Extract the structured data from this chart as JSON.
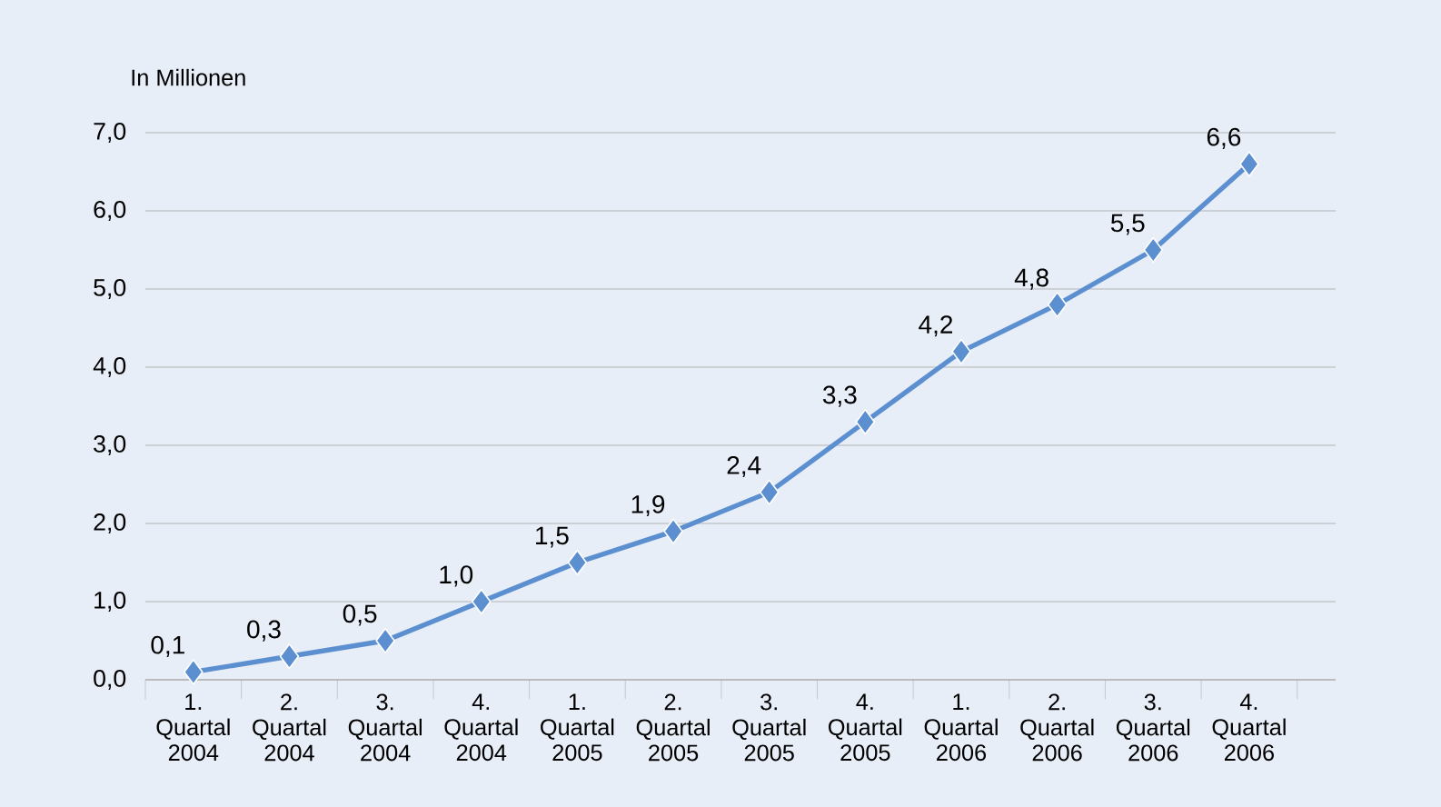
{
  "chart_data": {
    "type": "line",
    "ylabel": "In Millionen",
    "categories": [
      "1. Quartal 2004",
      "2. Quartal 2004",
      "3. Quartal 2004",
      "4. Quartal 2004",
      "1. Quartal 2005",
      "2. Quartal 2005",
      "3. Quartal 2005",
      "4. Quartal 2005",
      "1. Quartal 2006",
      "2. Quartal 2006",
      "3. Quartal 2006",
      "4. Quartal 2006"
    ],
    "values": [
      0.1,
      0.3,
      0.5,
      1.0,
      1.5,
      1.9,
      2.4,
      3.3,
      4.2,
      4.8,
      5.5,
      6.6
    ],
    "value_labels": [
      "0,1",
      "0,3",
      "0,5",
      "1,0",
      "1,5",
      "1,9",
      "2,4",
      "3,3",
      "4,2",
      "4,8",
      "5,5",
      "6,6"
    ],
    "color": "#5b8fd0",
    "marker": "diamond",
    "line_style": "solid",
    "grid": "y",
    "ylim": [
      0,
      7
    ],
    "yticks": [
      {
        "value": 0,
        "label": "0,0"
      },
      {
        "value": 1,
        "label": "1,0"
      },
      {
        "value": 2,
        "label": "2,0"
      },
      {
        "value": 3,
        "label": "3,0"
      },
      {
        "value": 4,
        "label": "4,0"
      },
      {
        "value": 5,
        "label": "5,0"
      },
      {
        "value": 6,
        "label": "6,0"
      },
      {
        "value": 7,
        "label": "7,0"
      }
    ]
  }
}
